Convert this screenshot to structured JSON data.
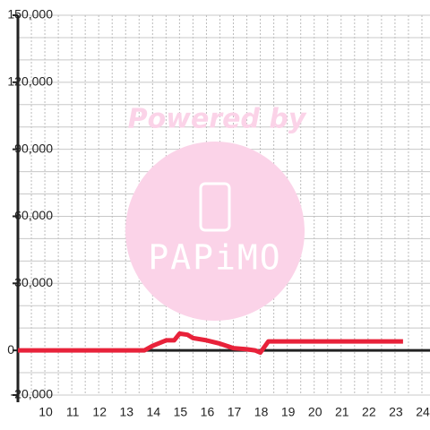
{
  "chart_data": {
    "type": "line",
    "watermark": "Powered by",
    "logo": "PAPiMO",
    "x": [
      9,
      13.7,
      14,
      14.5,
      14.8,
      15,
      15.3,
      15.5,
      16,
      16.5,
      17,
      17.5,
      17.8,
      18,
      18.3,
      23.3
    ],
    "series": [
      {
        "color": "#e8223a",
        "values": [
          0,
          0,
          2000,
          4500,
          4500,
          7500,
          7000,
          5500,
          4500,
          3000,
          1000,
          500,
          0,
          -1000,
          4000,
          4000
        ]
      }
    ],
    "xlim": [
      9,
      24.3
    ],
    "xticks": [
      10,
      11,
      12,
      13,
      14,
      15,
      16,
      17,
      18,
      19,
      20,
      21,
      22,
      23,
      24
    ],
    "xgrid": [
      9.5,
      10,
      10.5,
      11,
      11.5,
      12,
      12.5,
      13,
      13.5,
      14,
      14.5,
      15,
      15.5,
      16,
      16.5,
      17,
      17.5,
      18,
      18.5,
      19,
      19.5,
      20,
      20.5,
      21,
      21.5,
      22,
      22.5,
      23,
      23.5,
      24
    ],
    "ylim": [
      -20000,
      150000
    ],
    "yticks": [
      {
        "value": -20000,
        "label": "-20,000"
      },
      0,
      {
        "value": 30000,
        "label": "30,000"
      },
      {
        "value": 60000,
        "label": "60,000"
      },
      {
        "value": 90000,
        "label": "90,000"
      },
      {
        "value": 120000,
        "label": "120,000"
      },
      {
        "value": 150000,
        "label": "150,000"
      }
    ],
    "ygrid": [
      -10000,
      10000,
      20000,
      40000,
      50000,
      70000,
      80000,
      100000,
      110000,
      130000,
      140000
    ],
    "grid": true
  }
}
